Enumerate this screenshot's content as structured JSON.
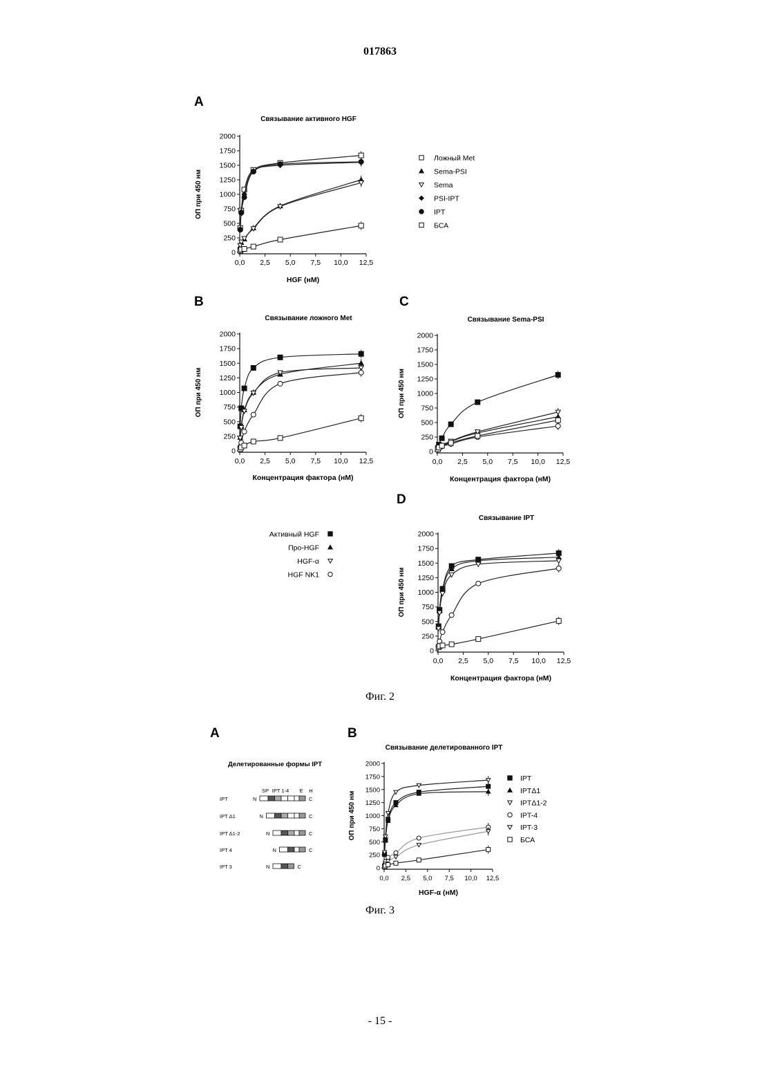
{
  "header": {
    "doc_number": "017863"
  },
  "figure2": {
    "caption": "Фиг. 2",
    "panel_letters": [
      "A",
      "B",
      "C",
      "D"
    ],
    "shared_legend": [
      "Активный HGF",
      "Про-HGF",
      "HGF-α",
      "HGF NK1"
    ]
  },
  "figure3": {
    "caption": "Фиг. 3",
    "panel_letters": [
      "A",
      "B"
    ],
    "domain_diagram": {
      "title": "Делетированные формы IPT",
      "header_labels": [
        "SP",
        "IPT 1-4",
        "E",
        "H"
      ],
      "constructs": [
        "IPT",
        "IPT Δ1",
        "IPT Δ1-2",
        "IPT 4",
        "IPT 3"
      ],
      "n_label": "N",
      "c_label": "C"
    }
  },
  "footer": {
    "page": "- 15 -"
  },
  "chart_data": [
    {
      "id": "fig2A",
      "type": "scatter",
      "title": "Связывание активного HGF",
      "xlabel": "HGF (нМ)",
      "ylabel": "ОП при 450 нм",
      "xlim": [
        0,
        12.5
      ],
      "ylim": [
        0,
        2000
      ],
      "xticks": [
        "0,0",
        "2,5",
        "5,0",
        "7,5",
        "10,0",
        "12,5"
      ],
      "yticks": [
        "0",
        "250",
        "500",
        "750",
        "1000",
        "1250",
        "1500",
        "1750",
        "2000"
      ],
      "x": [
        0.05,
        0.15,
        0.45,
        1.35,
        4.0,
        12.0
      ],
      "series": [
        {
          "name": "Ложный Met",
          "marker": "square-open",
          "values": [
            420,
            720,
            1080,
            1420,
            1540,
            1670
          ]
        },
        {
          "name": "Sema-PSI",
          "marker": "triangle-up",
          "values": [
            110,
            170,
            230,
            420,
            800,
            1250
          ]
        },
        {
          "name": "Sema",
          "marker": "triangle-down-open",
          "values": [
            120,
            180,
            240,
            410,
            790,
            1200
          ]
        },
        {
          "name": "PSI-IPT",
          "marker": "diamond",
          "values": [
            400,
            700,
            1000,
            1400,
            1500,
            1550
          ]
        },
        {
          "name": "IPT",
          "marker": "circle",
          "values": [
            390,
            680,
            950,
            1390,
            1520,
            1560
          ]
        },
        {
          "name": "БСА",
          "marker": "square-open",
          "values": [
            30,
            50,
            60,
            100,
            220,
            460
          ]
        }
      ]
    },
    {
      "id": "fig2B",
      "type": "scatter",
      "title": "Связывание ложного Met",
      "xlabel": "Концентрация фактора (нМ)",
      "ylabel": "ОП при 450 нм",
      "xlim": [
        0,
        12.5
      ],
      "ylim": [
        0,
        2000
      ],
      "xticks": [
        "0,0",
        "2,5",
        "5,0",
        "7,5",
        "10,0",
        "12,5"
      ],
      "yticks": [
        "0",
        "250",
        "500",
        "750",
        "1000",
        "1250",
        "1500",
        "1750",
        "2000"
      ],
      "x": [
        0.05,
        0.15,
        0.45,
        1.35,
        4.0,
        12.0
      ],
      "series": [
        {
          "name": "Активный HGF",
          "marker": "square",
          "values": [
            420,
            730,
            1070,
            1420,
            1600,
            1660
          ]
        },
        {
          "name": "Про-HGF",
          "marker": "triangle-up",
          "values": [
            230,
            420,
            700,
            1000,
            1310,
            1500
          ]
        },
        {
          "name": "HGF-α",
          "marker": "triangle-down-open",
          "values": [
            220,
            400,
            680,
            990,
            1340,
            1420
          ]
        },
        {
          "name": "HGF NK1",
          "marker": "circle-open",
          "values": [
            70,
            140,
            330,
            620,
            1150,
            1340
          ]
        },
        {
          "name": "",
          "marker": "square-open",
          "values": [
            30,
            60,
            90,
            160,
            220,
            560
          ]
        }
      ]
    },
    {
      "id": "fig2C",
      "type": "scatter",
      "title": "Связывание Sema-PSI",
      "xlabel": "Концентрация фактора (нМ)",
      "ylabel": "ОП при 450 нм",
      "xlim": [
        0,
        12.5
      ],
      "ylim": [
        0,
        2000
      ],
      "xticks": [
        "0,0",
        "2,5",
        "5,0",
        "7,5",
        "10,0",
        "12,5"
      ],
      "yticks": [
        "0",
        "250",
        "500",
        "750",
        "1000",
        "1250",
        "1500",
        "1750",
        "2000"
      ],
      "x": [
        0.05,
        0.15,
        0.45,
        1.35,
        4.0,
        12.0
      ],
      "series": [
        {
          "name": "Активный HGF",
          "marker": "square",
          "values": [
            60,
            120,
            230,
            470,
            850,
            1320
          ]
        },
        {
          "name": "Про-HGF",
          "marker": "triangle-up",
          "values": [
            50,
            80,
            100,
            170,
            320,
            600
          ]
        },
        {
          "name": "HGF-α",
          "marker": "triangle-down-open",
          "values": [
            50,
            80,
            110,
            180,
            340,
            680
          ]
        },
        {
          "name": "HGF NK1",
          "marker": "circle-open",
          "values": [
            40,
            60,
            90,
            130,
            250,
            440
          ]
        },
        {
          "name": "",
          "marker": "square-open",
          "values": [
            40,
            70,
            100,
            150,
            270,
            540
          ]
        }
      ]
    },
    {
      "id": "fig2D",
      "type": "scatter",
      "title": "Связывание IPT",
      "xlabel": "Концентрация фактора (нМ)",
      "ylabel": "ОП при 450 нм",
      "xlim": [
        0,
        12.5
      ],
      "ylim": [
        0,
        2000
      ],
      "xticks": [
        "0,0",
        "2,5",
        "5,0",
        "7,5",
        "10,0",
        "12,5"
      ],
      "yticks": [
        "0",
        "250",
        "500",
        "750",
        "1000",
        "1250",
        "1500",
        "1750",
        "2000"
      ],
      "x": [
        0.05,
        0.15,
        0.45,
        1.35,
        4.0,
        12.0
      ],
      "series": [
        {
          "name": "Активный HGF",
          "marker": "square",
          "values": [
            420,
            700,
            1060,
            1450,
            1560,
            1670
          ]
        },
        {
          "name": "Про-HGF",
          "marker": "triangle-up",
          "values": [
            400,
            680,
            1030,
            1400,
            1540,
            1600
          ]
        },
        {
          "name": "HGF-α",
          "marker": "triangle-down-open",
          "values": [
            380,
            650,
            980,
            1300,
            1480,
            1540
          ]
        },
        {
          "name": "HGF NK1",
          "marker": "circle-open",
          "values": [
            80,
            160,
            320,
            610,
            1150,
            1410
          ]
        },
        {
          "name": "",
          "marker": "square-open",
          "values": [
            60,
            80,
            90,
            110,
            200,
            510
          ]
        }
      ]
    },
    {
      "id": "fig3B",
      "type": "scatter",
      "title": "Связывание делетированного IPT",
      "xlabel": "HGF-α (нМ)",
      "ylabel": "ОП при 450 нм",
      "xlim": [
        0,
        12.5
      ],
      "ylim": [
        0,
        2000
      ],
      "xticks": [
        "0,0",
        "2,5",
        "5,0",
        "7,5",
        "10,0",
        "12,5"
      ],
      "yticks": [
        "0",
        "250",
        "500",
        "750",
        "1000",
        "1250",
        "1500",
        "1750",
        "2000"
      ],
      "x": [
        0.05,
        0.15,
        0.45,
        1.35,
        4.0,
        12.0
      ],
      "series": [
        {
          "name": "IPT",
          "marker": "square",
          "values": [
            260,
            540,
            930,
            1250,
            1450,
            1560
          ]
        },
        {
          "name": "IPTΔ1",
          "marker": "triangle-up",
          "values": [
            250,
            520,
            900,
            1200,
            1420,
            1460
          ]
        },
        {
          "name": "IPTΔ1-2",
          "marker": "triangle-down-open",
          "values": [
            300,
            600,
            1050,
            1450,
            1580,
            1680
          ]
        },
        {
          "name": "IPT-4",
          "marker": "circle-open",
          "values": [
            60,
            120,
            200,
            290,
            570,
            780
          ]
        },
        {
          "name": "IPT-3",
          "marker": "triangle-down-open",
          "values": [
            40,
            80,
            130,
            210,
            440,
            700
          ]
        },
        {
          "name": "БСА",
          "marker": "square-open",
          "values": [
            20,
            40,
            60,
            90,
            150,
            350
          ]
        }
      ]
    }
  ]
}
